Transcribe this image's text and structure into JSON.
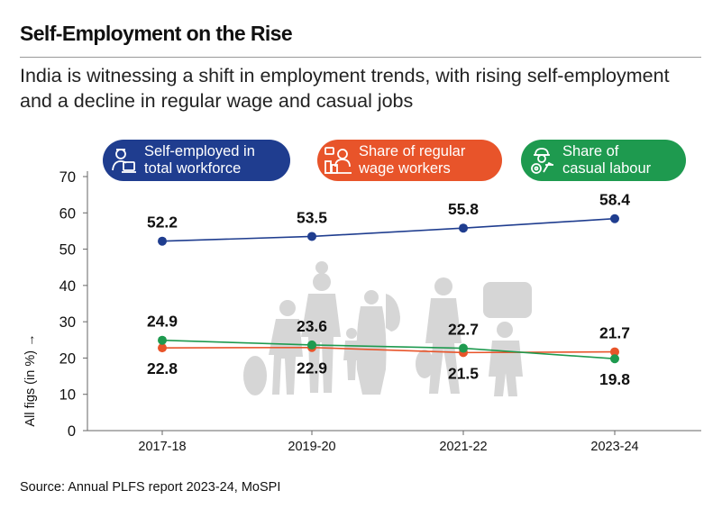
{
  "header": {
    "title": "Self-Employment on the Rise",
    "subtitle": "India is witnessing a shift in employment trends, with rising self-employment and a decline in regular wage and casual jobs"
  },
  "legend": [
    {
      "line1": "Self-employed in",
      "line2": "total workforce",
      "color": "#1f3d8f",
      "icon": "person-laptop-icon"
    },
    {
      "line1": "Share of regular",
      "line2": "wage workers",
      "color": "#e8542a",
      "icon": "office-worker-icon"
    },
    {
      "line1": "Share of",
      "line2": "casual labour",
      "color": "#1e9a4f",
      "icon": "construction-worker-icon"
    }
  ],
  "source": "Source: Annual PLFS report 2023-24, MoSPI",
  "colors": {
    "blue": "#1f3d8f",
    "orange": "#e8542a",
    "green": "#1e9a4f",
    "silhouette": "#d3d3d3"
  },
  "chart_data": {
    "type": "line",
    "categories": [
      "2017-18",
      "2019-20",
      "2021-22",
      "2023-24"
    ],
    "ylabel": "All figs (in %) →",
    "ylim": [
      0,
      70
    ],
    "yticks": [
      "0",
      "10",
      "20",
      "30",
      "40",
      "50",
      "60",
      "70"
    ],
    "grid": false,
    "legend_position": "top",
    "series": [
      {
        "name": "Self-employed in total workforce",
        "color": "#1f3d8f",
        "values": [
          52.2,
          53.5,
          55.8,
          58.4
        ],
        "labels": [
          "52.2",
          "53.5",
          "55.8",
          "58.4"
        ]
      },
      {
        "name": "Share of regular wage workers",
        "color": "#e8542a",
        "values": [
          22.8,
          22.9,
          21.5,
          21.7
        ],
        "labels": [
          "22.8",
          "22.9",
          "21.5",
          "21.7"
        ]
      },
      {
        "name": "Share of casual labour",
        "color": "#1e9a4f",
        "values": [
          24.9,
          23.6,
          22.7,
          19.8
        ],
        "labels": [
          "24.9",
          "23.6",
          "22.7",
          "19.8"
        ]
      }
    ]
  }
}
